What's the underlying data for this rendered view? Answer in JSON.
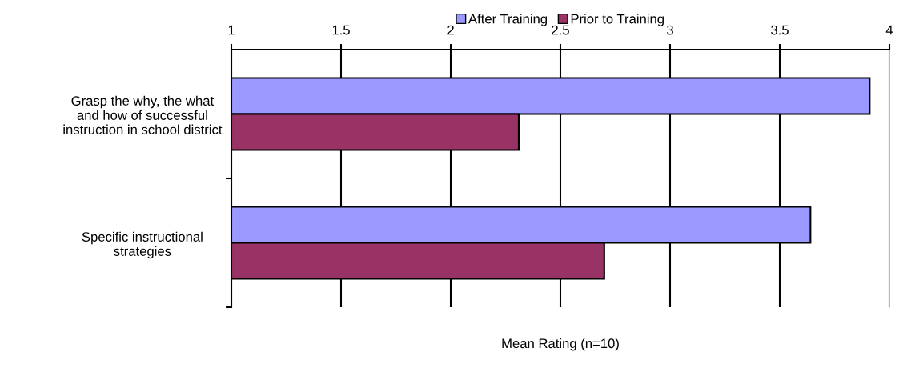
{
  "chart_data": {
    "type": "bar",
    "orientation": "horizontal",
    "xlabel": "Mean Rating (n=10)",
    "categories": [
      "Grasp the why, the what\nand how of successful\ninstruction in school district",
      "Specific instructional\nstrategies"
    ],
    "series": [
      {
        "name": "After Training",
        "color": "#9999ff",
        "values": [
          3.91,
          3.64
        ]
      },
      {
        "name": "Prior to Training",
        "color": "#993366",
        "values": [
          2.31,
          2.7
        ]
      }
    ],
    "xlim": [
      1,
      4
    ],
    "xticks": [
      1,
      1.5,
      2,
      2.5,
      3,
      3.5,
      4
    ],
    "grid": "x",
    "legend": "top"
  }
}
